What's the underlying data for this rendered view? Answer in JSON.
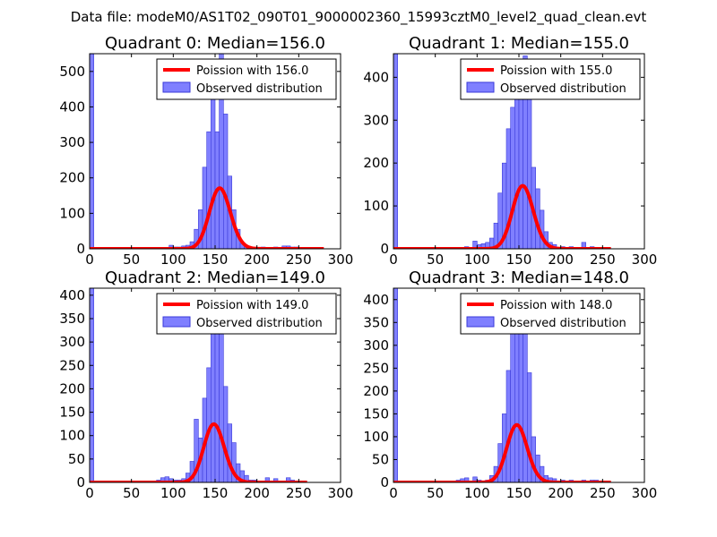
{
  "figure": {
    "suptitle": "Data file: modeM0/AS1T02_090T01_9000002360_15993cztM0_level2_quad_clean.evt",
    "colors": {
      "poisson_line": "#ff0000",
      "hist_fill": "#7f7fff",
      "hist_edge": "#3a3ad8",
      "axes": "#000000"
    }
  },
  "chart_data": [
    {
      "type": "bar",
      "title": "Quadrant 0: Median=156.0",
      "xlabel": "",
      "ylabel": "",
      "xlim": [
        0,
        300
      ],
      "ylim": [
        0,
        550
      ],
      "xticks": [
        0,
        50,
        100,
        150,
        200,
        250,
        300
      ],
      "yticks": [
        0,
        100,
        200,
        300,
        400,
        500
      ],
      "grid": false,
      "legend_position": "top-right",
      "legend": [
        "Poission with 156.0",
        "Observed distribution"
      ],
      "median": 156.0,
      "bin_width": 5,
      "series": [
        {
          "name": "Observed distribution",
          "kind": "histogram",
          "bins": [
            [
              0,
              550
            ],
            [
              95,
              10
            ],
            [
              100,
              5
            ],
            [
              105,
              5
            ],
            [
              110,
              8
            ],
            [
              115,
              10
            ],
            [
              120,
              20
            ],
            [
              125,
              55
            ],
            [
              130,
              110
            ],
            [
              135,
              230
            ],
            [
              140,
              330
            ],
            [
              145,
              450
            ],
            [
              150,
              330
            ],
            [
              155,
              550
            ],
            [
              160,
              380
            ],
            [
              165,
              205
            ],
            [
              170,
              110
            ],
            [
              175,
              55
            ],
            [
              180,
              15
            ],
            [
              185,
              5
            ],
            [
              190,
              5
            ],
            [
              205,
              5
            ],
            [
              220,
              5
            ],
            [
              230,
              8
            ],
            [
              235,
              8
            ],
            [
              240,
              5
            ],
            [
              245,
              5
            ]
          ]
        },
        {
          "name": "Poission with 156.0",
          "kind": "line",
          "mean": 156.0,
          "scale": 5355,
          "x_range": [
            0,
            280
          ]
        }
      ]
    },
    {
      "type": "bar",
      "title": "Quadrant 1: Median=155.0",
      "xlabel": "",
      "ylabel": "",
      "xlim": [
        0,
        300
      ],
      "ylim": [
        0,
        455
      ],
      "xticks": [
        0,
        50,
        100,
        150,
        200,
        250,
        300
      ],
      "yticks": [
        0,
        100,
        200,
        300,
        400
      ],
      "grid": false,
      "legend_position": "top-right",
      "legend": [
        "Poission with 155.0",
        "Observed distribution"
      ],
      "median": 155.0,
      "bin_width": 5,
      "series": [
        {
          "name": "Observed distribution",
          "kind": "histogram",
          "bins": [
            [
              0,
              455
            ],
            [
              85,
              5
            ],
            [
              95,
              18
            ],
            [
              100,
              10
            ],
            [
              105,
              12
            ],
            [
              110,
              15
            ],
            [
              115,
              25
            ],
            [
              120,
              60
            ],
            [
              125,
              130
            ],
            [
              130,
              200
            ],
            [
              135,
              280
            ],
            [
              140,
              330
            ],
            [
              145,
              390
            ],
            [
              150,
              360
            ],
            [
              155,
              450
            ],
            [
              160,
              400
            ],
            [
              165,
              190
            ],
            [
              170,
              140
            ],
            [
              175,
              90
            ],
            [
              180,
              40
            ],
            [
              185,
              15
            ],
            [
              190,
              10
            ],
            [
              200,
              5
            ],
            [
              210,
              5
            ],
            [
              225,
              15
            ],
            [
              235,
              5
            ]
          ]
        },
        {
          "name": "Poission with 155.0",
          "kind": "line",
          "mean": 155.0,
          "scale": 4585,
          "x_range": [
            0,
            260
          ]
        }
      ]
    },
    {
      "type": "bar",
      "title": "Quadrant 2: Median=149.0",
      "xlabel": "",
      "ylabel": "",
      "xlim": [
        0,
        300
      ],
      "ylim": [
        0,
        415
      ],
      "xticks": [
        0,
        50,
        100,
        150,
        200,
        250,
        300
      ],
      "yticks": [
        0,
        50,
        100,
        150,
        200,
        250,
        300,
        350,
        400
      ],
      "grid": false,
      "legend_position": "top-right",
      "legend": [
        "Poission with 149.0",
        "Observed distribution"
      ],
      "median": 149.0,
      "bin_width": 5,
      "series": [
        {
          "name": "Observed distribution",
          "kind": "histogram",
          "bins": [
            [
              0,
              415
            ],
            [
              80,
              5
            ],
            [
              85,
              10
            ],
            [
              90,
              12
            ],
            [
              95,
              8
            ],
            [
              100,
              5
            ],
            [
              105,
              5
            ],
            [
              110,
              8
            ],
            [
              115,
              20
            ],
            [
              120,
              45
            ],
            [
              125,
              135
            ],
            [
              130,
              95
            ],
            [
              135,
              180
            ],
            [
              140,
              245
            ],
            [
              145,
              385
            ],
            [
              150,
              335
            ],
            [
              155,
              360
            ],
            [
              160,
              205
            ],
            [
              165,
              125
            ],
            [
              170,
              85
            ],
            [
              175,
              40
            ],
            [
              180,
              25
            ],
            [
              185,
              15
            ],
            [
              190,
              5
            ],
            [
              195,
              5
            ],
            [
              210,
              10
            ],
            [
              220,
              8
            ],
            [
              235,
              10
            ],
            [
              240,
              5
            ]
          ]
        },
        {
          "name": "Poission with 149.0",
          "kind": "line",
          "mean": 149.0,
          "scale": 3812,
          "x_range": [
            0,
            260
          ]
        }
      ]
    },
    {
      "type": "bar",
      "title": "Quadrant 3: Median=148.0",
      "xlabel": "",
      "ylabel": "",
      "xlim": [
        0,
        300
      ],
      "ylim": [
        0,
        425
      ],
      "xticks": [
        0,
        50,
        100,
        150,
        200,
        250,
        300
      ],
      "yticks": [
        0,
        50,
        100,
        150,
        200,
        250,
        300,
        350,
        400
      ],
      "grid": false,
      "legend_position": "top-right",
      "legend": [
        "Poission with 148.0",
        "Observed distribution"
      ],
      "median": 148.0,
      "bin_width": 5,
      "series": [
        {
          "name": "Observed distribution",
          "kind": "histogram",
          "bins": [
            [
              0,
              425
            ],
            [
              75,
              5
            ],
            [
              80,
              8
            ],
            [
              85,
              10
            ],
            [
              95,
              12
            ],
            [
              100,
              5
            ],
            [
              110,
              5
            ],
            [
              115,
              15
            ],
            [
              120,
              35
            ],
            [
              125,
              85
            ],
            [
              130,
              150
            ],
            [
              135,
              245
            ],
            [
              140,
              370
            ],
            [
              145,
              405
            ],
            [
              150,
              330
            ],
            [
              155,
              360
            ],
            [
              160,
              240
            ],
            [
              165,
              100
            ],
            [
              170,
              60
            ],
            [
              175,
              35
            ],
            [
              180,
              15
            ],
            [
              185,
              10
            ],
            [
              190,
              8
            ],
            [
              200,
              5
            ],
            [
              210,
              5
            ],
            [
              225,
              5
            ],
            [
              235,
              5
            ],
            [
              240,
              5
            ]
          ]
        },
        {
          "name": "Poission with 148.0",
          "kind": "line",
          "mean": 148.0,
          "scale": 3838,
          "x_range": [
            0,
            260
          ]
        }
      ]
    }
  ]
}
